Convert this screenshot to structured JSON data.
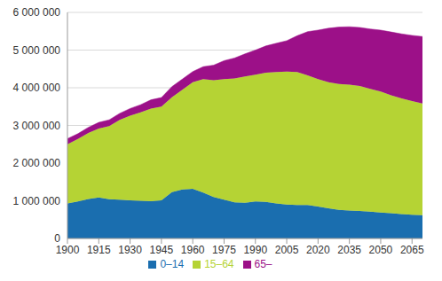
{
  "chart_data": {
    "type": "area",
    "stacked": true,
    "grid": true,
    "legend": "bottom",
    "x": [
      1900,
      1905,
      1910,
      1915,
      1920,
      1925,
      1930,
      1935,
      1940,
      1945,
      1950,
      1955,
      1960,
      1965,
      1970,
      1975,
      1980,
      1985,
      1990,
      1995,
      2000,
      2005,
      2010,
      2015,
      2020,
      2025,
      2030,
      2035,
      2040,
      2045,
      2050,
      2055,
      2060,
      2065,
      2070
    ],
    "series": [
      {
        "name": "0–14",
        "color": "#1a6eaf",
        "values": [
          930000,
          980000,
          1050000,
          1090000,
          1040000,
          1030000,
          1010000,
          1000000,
          990000,
          1010000,
          1230000,
          1300000,
          1320000,
          1220000,
          1100000,
          1030000,
          960000,
          950000,
          980000,
          970000,
          930000,
          900000,
          890000,
          890000,
          850000,
          800000,
          760000,
          740000,
          730000,
          710000,
          690000,
          670000,
          650000,
          630000,
          620000
        ]
      },
      {
        "name": "15–64",
        "color": "#b5d334",
        "values": [
          1570000,
          1660000,
          1750000,
          1830000,
          1940000,
          2120000,
          2250000,
          2350000,
          2460000,
          2490000,
          2520000,
          2650000,
          2830000,
          3010000,
          3100000,
          3200000,
          3290000,
          3350000,
          3370000,
          3430000,
          3490000,
          3530000,
          3530000,
          3440000,
          3380000,
          3350000,
          3340000,
          3340000,
          3320000,
          3260000,
          3210000,
          3130000,
          3070000,
          3020000,
          2960000
        ]
      },
      {
        "name": "65–",
        "color": "#9c1088",
        "values": [
          150000,
          140000,
          150000,
          160000,
          170000,
          170000,
          190000,
          200000,
          230000,
          240000,
          280000,
          280000,
          280000,
          330000,
          400000,
          490000,
          540000,
          600000,
          650000,
          710000,
          760000,
          820000,
          960000,
          1160000,
          1300000,
          1430000,
          1510000,
          1540000,
          1550000,
          1590000,
          1630000,
          1680000,
          1710000,
          1740000,
          1780000
        ]
      }
    ],
    "xlim": [
      1900,
      2070
    ],
    "xticks": [
      1900,
      1915,
      1930,
      1945,
      1960,
      1975,
      1990,
      2005,
      2020,
      2035,
      2050,
      2065
    ],
    "ylim": [
      0,
      6000000
    ],
    "yticks": [
      0,
      {
        "value": 1000000,
        "label": "1 000 000"
      },
      {
        "value": 2000000,
        "label": "2 000 000"
      },
      {
        "value": 3000000,
        "label": "3 000 000"
      },
      {
        "value": 4000000,
        "label": "4 000 000"
      },
      {
        "value": 5000000,
        "label": "5 000 000"
      },
      {
        "value": 6000000,
        "label": "6 000 000"
      }
    ]
  }
}
